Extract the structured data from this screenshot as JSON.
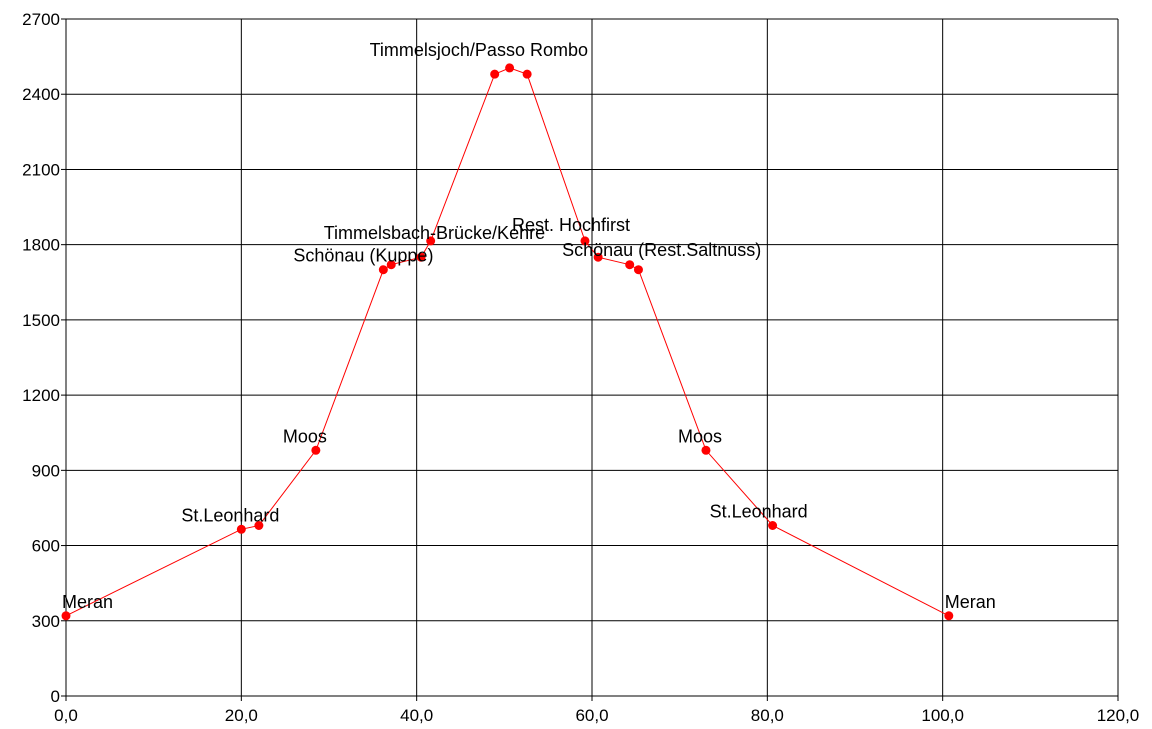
{
  "chart_data": {
    "type": "line",
    "title": "",
    "xlabel": "",
    "ylabel": "",
    "xlim": [
      0,
      120
    ],
    "ylim": [
      0,
      2700
    ],
    "x_ticks": [
      0,
      20,
      40,
      60,
      80,
      100,
      120
    ],
    "x_tick_labels": [
      "0,0",
      "20,0",
      "40,0",
      "60,0",
      "80,0",
      "100,0",
      "120,0"
    ],
    "y_ticks": [
      0,
      300,
      600,
      900,
      1200,
      1500,
      1800,
      2100,
      2400,
      2700
    ],
    "y_tick_labels": [
      "0",
      "300",
      "600",
      "900",
      "1200",
      "1500",
      "1800",
      "2100",
      "2400",
      "2700"
    ],
    "grid": true,
    "line_color": "#ff0000",
    "marker_color": "#ff0000",
    "series": [
      {
        "points": [
          {
            "x": 0.0,
            "y": 320
          },
          {
            "x": 20.0,
            "y": 665
          },
          {
            "x": 22.0,
            "y": 680
          },
          {
            "x": 28.5,
            "y": 980
          },
          {
            "x": 36.2,
            "y": 1700
          },
          {
            "x": 37.1,
            "y": 1720
          },
          {
            "x": 40.5,
            "y": 1750
          },
          {
            "x": 41.6,
            "y": 1815
          },
          {
            "x": 48.9,
            "y": 2480
          },
          {
            "x": 50.6,
            "y": 2505
          },
          {
            "x": 52.6,
            "y": 2480
          },
          {
            "x": 59.2,
            "y": 1815
          },
          {
            "x": 60.7,
            "y": 1750
          },
          {
            "x": 64.3,
            "y": 1720
          },
          {
            "x": 65.3,
            "y": 1700
          },
          {
            "x": 73.0,
            "y": 980
          },
          {
            "x": 80.6,
            "y": 680
          },
          {
            "x": 100.7,
            "y": 320
          }
        ]
      }
    ],
    "annotations": [
      {
        "text": "Meran",
        "x": 0.0,
        "y": 320
      },
      {
        "text": "St.Leonhard",
        "x": 20.0,
        "y": 665
      },
      {
        "text": "Moos",
        "x": 28.5,
        "y": 980
      },
      {
        "text": "Schönau  (Kuppe)",
        "x": 36.2,
        "y": 1700
      },
      {
        "text": "Timmelsbach-Brücke/Kehre",
        "x": 41.6,
        "y": 1815
      },
      {
        "text": "Timmelsjoch/Passo Rombo",
        "x": 50.6,
        "y": 2505
      },
      {
        "text": "Rest. Hochfirst",
        "x": 59.2,
        "y": 1815
      },
      {
        "text": "Schönau (Rest.Saltnuss)",
        "x": 60.7,
        "y": 1750
      },
      {
        "text": "Moos",
        "x": 73.0,
        "y": 980
      },
      {
        "text": "St.Leonhard",
        "x": 80.6,
        "y": 680
      },
      {
        "text": "Meran",
        "x": 100.7,
        "y": 320
      }
    ]
  }
}
